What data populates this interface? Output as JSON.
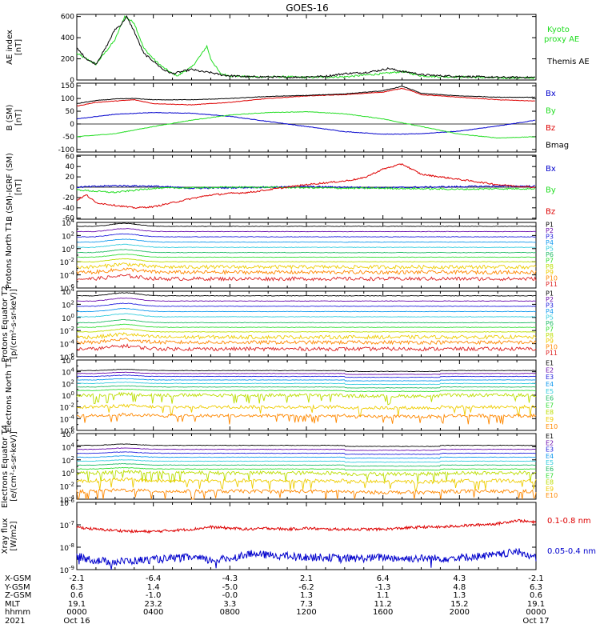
{
  "title": "GOES-16",
  "colors": {
    "black": "#000000",
    "blue": "#0000cc",
    "green": "#22dd22",
    "red": "#dd0000",
    "ch": [
      "#000000",
      "#6a0dad",
      "#2222dd",
      "#1199ee",
      "#33ccdd",
      "#22bb66",
      "#33dd33",
      "#bbdd00",
      "#eecc00",
      "#ff8800",
      "#dd2222"
    ]
  },
  "chart_data": [
    {
      "type": "line",
      "title": "GOES-16",
      "ylabel": "AE index [nT]",
      "ylim": [
        0,
        620
      ],
      "yticks": [
        "0",
        "200",
        "400",
        "600"
      ],
      "legend": [
        "Kyoto proxy AE",
        "Themis AE"
      ],
      "legend_colors": [
        "#22dd22",
        "#000000"
      ],
      "series": [
        {
          "name": "Kyoto proxy AE",
          "color": "#22dd22",
          "x": [
            0,
            1,
            2,
            2.5,
            3,
            3.5,
            4,
            4.5,
            5,
            5.3,
            5.6,
            6,
            6.5,
            6.8,
            7,
            7.5,
            8,
            9,
            10,
            11,
            12,
            14,
            16,
            17,
            17.5,
            18,
            19,
            20,
            21,
            22,
            23,
            24
          ],
          "y": [
            250,
            150,
            380,
            600,
            540,
            300,
            200,
            120,
            60,
            40,
            80,
            120,
            240,
            320,
            200,
            60,
            40,
            30,
            30,
            30,
            25,
            30,
            60,
            80,
            60,
            40,
            30,
            30,
            25,
            20,
            20,
            20
          ]
        },
        {
          "name": "Themis AE",
          "color": "#000000",
          "x": [
            0,
            0.5,
            1,
            1.5,
            2,
            2.3,
            2.6,
            3,
            3.5,
            4,
            4.5,
            5,
            5.5,
            6,
            6.5,
            7,
            7.5,
            8,
            9,
            10,
            11,
            12,
            13,
            14,
            15,
            15.8,
            16.3,
            17,
            17.5,
            18,
            19,
            20,
            21,
            22,
            23,
            24
          ],
          "y": [
            300,
            200,
            150,
            300,
            480,
            520,
            600,
            460,
            250,
            180,
            100,
            60,
            80,
            100,
            80,
            70,
            50,
            40,
            30,
            30,
            25,
            30,
            35,
            60,
            70,
            90,
            110,
            80,
            70,
            50,
            40,
            35,
            30,
            25,
            25,
            25
          ]
        }
      ]
    },
    {
      "type": "line",
      "ylabel": "B (SM) [nT]",
      "ylim": [
        -110,
        160
      ],
      "yticks": [
        "-100",
        "-50",
        "0",
        "50",
        "100",
        "150"
      ],
      "legend": [
        "Bx",
        "By",
        "Bz",
        "Bmag"
      ],
      "legend_colors": [
        "#0000cc",
        "#22dd22",
        "#dd0000",
        "#000000"
      ],
      "series": [
        {
          "name": "Bx",
          "color": "#0000cc",
          "x": [
            0,
            2,
            4,
            6,
            8,
            10,
            12,
            14,
            16,
            17,
            18,
            20,
            22,
            24
          ],
          "y": [
            20,
            38,
            45,
            42,
            30,
            10,
            -10,
            -30,
            -40,
            -40,
            -38,
            -28,
            -8,
            15
          ]
        },
        {
          "name": "By",
          "color": "#22dd22",
          "x": [
            0,
            2,
            4,
            6,
            8,
            10,
            12,
            14,
            16,
            18,
            20,
            22,
            24
          ],
          "y": [
            -50,
            -38,
            -10,
            15,
            35,
            45,
            48,
            40,
            20,
            -10,
            -40,
            -55,
            -50
          ]
        },
        {
          "name": "Bz",
          "color": "#dd0000",
          "x": [
            0,
            1,
            2,
            3,
            4,
            6,
            8,
            10,
            12,
            14,
            16,
            17,
            17.5,
            18,
            19,
            20,
            21,
            22,
            24
          ],
          "y": [
            70,
            85,
            90,
            95,
            80,
            75,
            85,
            100,
            110,
            115,
            125,
            140,
            130,
            115,
            110,
            105,
            100,
            95,
            90
          ]
        },
        {
          "name": "Bmag",
          "color": "#000000",
          "x": [
            0,
            1,
            2,
            3,
            4,
            6,
            8,
            10,
            12,
            14,
            16,
            17,
            17.5,
            18,
            19,
            20,
            21,
            22,
            24
          ],
          "y": [
            80,
            92,
            98,
            100,
            95,
            95,
            100,
            108,
            112,
            118,
            130,
            148,
            135,
            120,
            115,
            110,
            108,
            105,
            105
          ]
        }
      ]
    },
    {
      "type": "line",
      "ylabel": "B (SM)-IGRF (SM) [nT]",
      "ylim": [
        -62,
        62
      ],
      "yticks": [
        "-60",
        "-40",
        "-20",
        "0",
        "20",
        "40",
        "60"
      ],
      "legend": [
        "Bx",
        "By",
        "Bz"
      ],
      "legend_colors": [
        "#0000cc",
        "#22dd22",
        "#dd0000"
      ],
      "series": [
        {
          "name": "Bx",
          "color": "#0000cc",
          "x": [
            0,
            2,
            4,
            6,
            8,
            10,
            12,
            14,
            16,
            18,
            20,
            22,
            24
          ],
          "y": [
            0,
            3,
            2,
            -2,
            -1,
            0,
            1,
            0,
            -1,
            0,
            1,
            2,
            2
          ]
        },
        {
          "name": "By",
          "color": "#22dd22",
          "x": [
            0,
            1,
            2,
            3,
            4,
            6,
            8,
            10,
            12,
            14,
            16,
            18,
            20,
            22,
            24
          ],
          "y": [
            -5,
            -8,
            -10,
            -6,
            -2,
            -1,
            0,
            0,
            -1,
            -2,
            -2,
            -3,
            -4,
            -3,
            -3
          ]
        },
        {
          "name": "Bz",
          "color": "#dd0000",
          "x": [
            0,
            0.5,
            1,
            2,
            3,
            4,
            5,
            6,
            7,
            8,
            9,
            10,
            12,
            14,
            15,
            16,
            16.5,
            17,
            17.5,
            18,
            19,
            20,
            21,
            22,
            23,
            24
          ],
          "y": [
            -25,
            -15,
            -30,
            -35,
            -40,
            -38,
            -30,
            -22,
            -15,
            -12,
            -10,
            -5,
            5,
            12,
            18,
            35,
            40,
            45,
            35,
            25,
            20,
            15,
            10,
            5,
            2,
            0
          ]
        }
      ]
    },
    {
      "type": "line",
      "ylabel": "Protons North T1",
      "ylim_log10": [
        -6,
        4
      ],
      "yticks": [
        "10^-6",
        "10^-4",
        "10^-2",
        "10^0",
        "10^2",
        "10^4"
      ],
      "legend": [
        "P1",
        "P2",
        "P3",
        "P4",
        "P5",
        "P6",
        "P7",
        "P8",
        "P9",
        "P10",
        "P11"
      ],
      "levels_log10": [
        3.4,
        2.6,
        1.8,
        1.0,
        0.2,
        -0.6,
        -1.3,
        -2.0,
        -2.8,
        -3.6,
        -4.6
      ]
    },
    {
      "type": "line",
      "ylabel": "Protons Equator T2 [p/(cm²-s-sr-keV)]",
      "ylim_log10": [
        -6,
        4
      ],
      "yticks": [
        "10^-6",
        "10^-4",
        "10^-2",
        "10^0",
        "10^2",
        "10^4"
      ],
      "legend": [
        "P1",
        "P2",
        "P3",
        "P4",
        "P5",
        "P6",
        "P7",
        "P8",
        "P9",
        "P10",
        "P11"
      ],
      "levels_log10": [
        3.3,
        2.5,
        1.7,
        0.9,
        0.1,
        -0.8,
        -1.5,
        -2.2,
        -3.0,
        -3.8,
        -4.8
      ]
    },
    {
      "type": "line",
      "ylabel": "Electrons North T3",
      "ylim_log10": [
        -6,
        6
      ],
      "yticks": [
        "10^-6",
        "10^-4",
        "10^-2",
        "10^0",
        "10^2",
        "10^4",
        "10^6"
      ],
      "legend": [
        "E1",
        "E2",
        "E3",
        "E4",
        "E5",
        "E6",
        "E7",
        "E8",
        "E9",
        "E10"
      ],
      "levels_log10": [
        4.2,
        3.7,
        3.2,
        2.6,
        2.0,
        1.4,
        0.8,
        0.0,
        -2.0,
        -3.5
      ]
    },
    {
      "type": "line",
      "ylabel": "Electrons Equator T4 [e/(cm²-s-sr-keV)]",
      "ylim_log10": [
        -4,
        6
      ],
      "yticks": [
        "10^-4",
        "10^-2",
        "10^0",
        "10^2",
        "10^4",
        "10^6"
      ],
      "legend": [
        "E1",
        "E2",
        "E3",
        "E4",
        "E5",
        "E6",
        "E7",
        "E8",
        "E9",
        "E10"
      ],
      "levels_log10": [
        4.2,
        3.6,
        3.0,
        2.4,
        1.8,
        1.2,
        0.6,
        0.0,
        -1.2,
        -2.8
      ]
    },
    {
      "type": "line",
      "ylabel": "Xray flux [W/m2]",
      "ylim_log10": [
        -9,
        -6
      ],
      "yticks": [
        "10^-9",
        "10^-8",
        "10^-7",
        "10^-6"
      ],
      "legend": [
        "0.1-0.8 nm",
        "0.05-0.4 nm"
      ],
      "legend_colors": [
        "#dd0000",
        "#0000cc"
      ],
      "series": [
        {
          "name": "0.1-0.8 nm",
          "color": "#dd0000",
          "x": [
            0,
            1,
            2,
            3,
            4,
            5,
            6,
            7,
            8,
            9,
            10,
            11,
            12,
            13,
            14,
            15,
            16,
            17,
            18,
            19,
            20,
            21,
            22,
            23,
            23.5,
            24
          ],
          "y": [
            -7.1,
            -7.2,
            -7.25,
            -7.3,
            -7.3,
            -7.25,
            -7.2,
            -7.1,
            -7.15,
            -7.2,
            -7.15,
            -7.2,
            -7.15,
            -7.2,
            -7.2,
            -7.2,
            -7.2,
            -7.15,
            -7.1,
            -7.1,
            -7.05,
            -7.0,
            -6.95,
            -6.8,
            -6.85,
            -6.9
          ]
        },
        {
          "name": "0.05-0.4 nm",
          "color": "#0000cc",
          "x": [
            0,
            1,
            2,
            3,
            4,
            5,
            6,
            7,
            8,
            9,
            10,
            11,
            12,
            13,
            14,
            15,
            16,
            17,
            18,
            19,
            20,
            21,
            22,
            23,
            23.5,
            24
          ],
          "y": [
            -8.4,
            -8.6,
            -8.65,
            -8.6,
            -8.55,
            -8.5,
            -8.45,
            -8.6,
            -8.5,
            -8.3,
            -8.35,
            -8.4,
            -8.45,
            -8.45,
            -8.5,
            -8.5,
            -8.45,
            -8.5,
            -8.5,
            -8.5,
            -8.45,
            -8.4,
            -8.35,
            -8.2,
            -8.3,
            -8.5
          ]
        }
      ]
    }
  ],
  "footer": {
    "row_labels": [
      "X-GSM",
      "Y-GSM",
      "Z-GSM",
      "MLT",
      "hhmm",
      "2021"
    ],
    "columns": [
      [
        "-2.1",
        "6.3",
        "0.6",
        "19.1",
        "0000",
        "Oct 16"
      ],
      [
        "-6.4",
        "1.4",
        "-1.0",
        "23.2",
        "0400",
        ""
      ],
      [
        "-4.3",
        "-5.0",
        "-0.0",
        "3.3",
        "0800",
        ""
      ],
      [
        "2.1",
        "-6.2",
        "1.3",
        "7.3",
        "1200",
        ""
      ],
      [
        "6.4",
        "-1.3",
        "1.1",
        "11.2",
        "1600",
        ""
      ],
      [
        "4.3",
        "4.8",
        "1.3",
        "15.2",
        "2000",
        ""
      ],
      [
        "-2.1",
        "6.3",
        "0.6",
        "19.1",
        "0000",
        "Oct 17"
      ]
    ]
  }
}
